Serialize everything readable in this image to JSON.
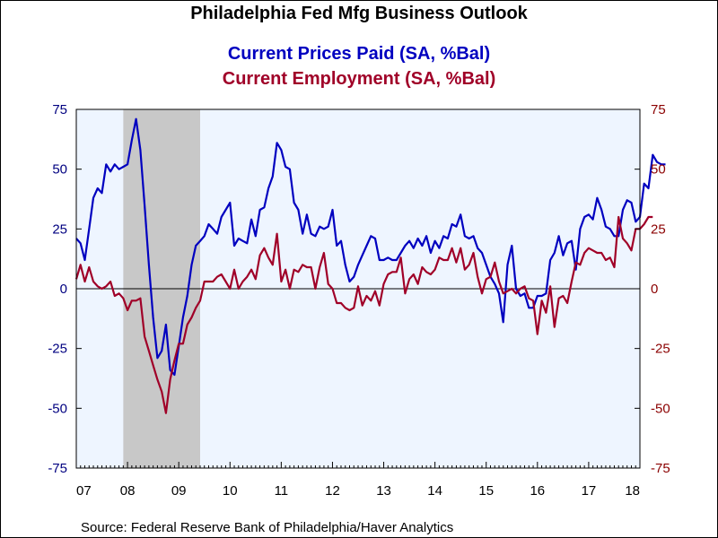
{
  "colors": {
    "background": "#ffffff",
    "plot_background": "#eef5ff",
    "recession_shade": "#c8c8c8",
    "prices_series": "#0000c0",
    "employment_series": "#a00028",
    "left_axis_text": "#000080",
    "right_axis_text": "#8b0000"
  },
  "chart_data": {
    "type": "line",
    "title": "Philadelphia Fed Mfg Business Outlook",
    "source": "Source:  Federal Reserve Bank of Philadelphia/Haver Analytics",
    "x_tick_labels": [
      "07",
      "08",
      "09",
      "10",
      "11",
      "12",
      "13",
      "14",
      "15",
      "16",
      "17",
      "18"
    ],
    "x_range": [
      2007.0,
      2018.0
    ],
    "ylim": [
      -75,
      75
    ],
    "y_tick_labels": [
      "75",
      "50",
      "25",
      "0",
      "-25",
      "-50",
      "-75"
    ],
    "y_ticks": [
      75,
      50,
      25,
      0,
      -25,
      -50,
      -75
    ],
    "zero_line": true,
    "grid": false,
    "legend_placement": "title",
    "recession": {
      "start": 2007.917,
      "end": 2009.417
    },
    "series": [
      {
        "name": "Current Prices Paid (SA, %Bal)",
        "axis": "left",
        "color": "#0000c0",
        "points": [
          [
            2007.0,
            21
          ],
          [
            2007.083,
            19
          ],
          [
            2007.167,
            12
          ],
          [
            2007.25,
            25
          ],
          [
            2007.333,
            38
          ],
          [
            2007.417,
            42
          ],
          [
            2007.5,
            40
          ],
          [
            2007.583,
            52
          ],
          [
            2007.667,
            49
          ],
          [
            2007.75,
            52
          ],
          [
            2007.833,
            50
          ],
          [
            2007.917,
            51
          ],
          [
            2008.0,
            52
          ],
          [
            2008.083,
            62
          ],
          [
            2008.167,
            71
          ],
          [
            2008.25,
            58
          ],
          [
            2008.333,
            35
          ],
          [
            2008.417,
            10
          ],
          [
            2008.5,
            -12
          ],
          [
            2008.583,
            -29
          ],
          [
            2008.667,
            -26
          ],
          [
            2008.75,
            -15
          ],
          [
            2008.833,
            -34
          ],
          [
            2008.917,
            -36
          ],
          [
            2009.0,
            -24
          ],
          [
            2009.083,
            -12
          ],
          [
            2009.167,
            -3
          ],
          [
            2009.25,
            10
          ],
          [
            2009.333,
            18
          ],
          [
            2009.417,
            20
          ],
          [
            2009.5,
            22
          ],
          [
            2009.583,
            27
          ],
          [
            2009.667,
            25
          ],
          [
            2009.75,
            23
          ],
          [
            2009.833,
            30
          ],
          [
            2009.917,
            33
          ],
          [
            2010.0,
            36
          ],
          [
            2010.083,
            18
          ],
          [
            2010.167,
            21
          ],
          [
            2010.25,
            20
          ],
          [
            2010.333,
            19
          ],
          [
            2010.417,
            29
          ],
          [
            2010.5,
            22
          ],
          [
            2010.583,
            33
          ],
          [
            2010.667,
            34
          ],
          [
            2010.75,
            42
          ],
          [
            2010.833,
            47
          ],
          [
            2010.917,
            61
          ],
          [
            2011.0,
            58
          ],
          [
            2011.083,
            51
          ],
          [
            2011.167,
            50
          ],
          [
            2011.25,
            36
          ],
          [
            2011.333,
            33
          ],
          [
            2011.417,
            23
          ],
          [
            2011.5,
            31
          ],
          [
            2011.583,
            23
          ],
          [
            2011.667,
            22
          ],
          [
            2011.75,
            26
          ],
          [
            2011.833,
            25
          ],
          [
            2011.917,
            26
          ],
          [
            2012.0,
            33
          ],
          [
            2012.083,
            18
          ],
          [
            2012.167,
            20
          ],
          [
            2012.25,
            10
          ],
          [
            2012.333,
            3
          ],
          [
            2012.417,
            5
          ],
          [
            2012.5,
            10
          ],
          [
            2012.583,
            14
          ],
          [
            2012.667,
            18
          ],
          [
            2012.75,
            22
          ],
          [
            2012.833,
            21
          ],
          [
            2012.917,
            12
          ],
          [
            2013.0,
            12
          ],
          [
            2013.083,
            13
          ],
          [
            2013.167,
            12
          ],
          [
            2013.25,
            12
          ],
          [
            2013.333,
            15
          ],
          [
            2013.417,
            18
          ],
          [
            2013.5,
            20
          ],
          [
            2013.583,
            17
          ],
          [
            2013.667,
            21
          ],
          [
            2013.75,
            18
          ],
          [
            2013.833,
            22
          ],
          [
            2013.917,
            15
          ],
          [
            2014.0,
            20
          ],
          [
            2014.083,
            17
          ],
          [
            2014.167,
            22
          ],
          [
            2014.25,
            21
          ],
          [
            2014.333,
            27
          ],
          [
            2014.417,
            26
          ],
          [
            2014.5,
            31
          ],
          [
            2014.583,
            22
          ],
          [
            2014.667,
            21
          ],
          [
            2014.75,
            22
          ],
          [
            2014.833,
            17
          ],
          [
            2014.917,
            15
          ],
          [
            2015.0,
            10
          ],
          [
            2015.083,
            5
          ],
          [
            2015.167,
            2
          ],
          [
            2015.25,
            -2
          ],
          [
            2015.333,
            -14
          ],
          [
            2015.417,
            10
          ],
          [
            2015.5,
            18
          ],
          [
            2015.583,
            0
          ],
          [
            2015.667,
            -3
          ],
          [
            2015.75,
            -2
          ],
          [
            2015.833,
            -8
          ],
          [
            2015.917,
            -8
          ],
          [
            2016.0,
            -3
          ],
          [
            2016.083,
            -3
          ],
          [
            2016.167,
            -2
          ],
          [
            2016.25,
            12
          ],
          [
            2016.333,
            15
          ],
          [
            2016.417,
            22
          ],
          [
            2016.5,
            14
          ],
          [
            2016.583,
            19
          ],
          [
            2016.667,
            20
          ],
          [
            2016.75,
            8
          ],
          [
            2016.833,
            25
          ],
          [
            2016.917,
            30
          ],
          [
            2017.0,
            31
          ],
          [
            2017.083,
            29
          ],
          [
            2017.167,
            38
          ],
          [
            2017.25,
            33
          ],
          [
            2017.333,
            26
          ],
          [
            2017.417,
            25
          ],
          [
            2017.5,
            22
          ],
          [
            2017.583,
            22
          ],
          [
            2017.667,
            33
          ],
          [
            2017.75,
            37
          ],
          [
            2017.833,
            36
          ],
          [
            2017.917,
            28
          ],
          [
            2018.0,
            30
          ],
          [
            2018.083,
            44
          ],
          [
            2018.167,
            42
          ],
          [
            2018.25,
            56
          ],
          [
            2018.333,
            53
          ],
          [
            2018.417,
            52
          ],
          [
            2018.5,
            52
          ]
        ]
      },
      {
        "name": "Current Employment (SA, %Bal)",
        "axis": "right",
        "color": "#a00028",
        "points": [
          [
            2007.0,
            4
          ],
          [
            2007.083,
            10
          ],
          [
            2007.167,
            3
          ],
          [
            2007.25,
            9
          ],
          [
            2007.333,
            3
          ],
          [
            2007.417,
            1
          ],
          [
            2007.5,
            0
          ],
          [
            2007.583,
            1
          ],
          [
            2007.667,
            3
          ],
          [
            2007.75,
            -3
          ],
          [
            2007.833,
            -2
          ],
          [
            2007.917,
            -4
          ],
          [
            2008.0,
            -9
          ],
          [
            2008.083,
            -5
          ],
          [
            2008.167,
            -5
          ],
          [
            2008.25,
            -4
          ],
          [
            2008.333,
            -20
          ],
          [
            2008.417,
            -26
          ],
          [
            2008.5,
            -32
          ],
          [
            2008.583,
            -38
          ],
          [
            2008.667,
            -43
          ],
          [
            2008.75,
            -52
          ],
          [
            2008.833,
            -38
          ],
          [
            2008.917,
            -30
          ],
          [
            2009.0,
            -23
          ],
          [
            2009.083,
            -23
          ],
          [
            2009.167,
            -15
          ],
          [
            2009.25,
            -12
          ],
          [
            2009.333,
            -8
          ],
          [
            2009.417,
            -5
          ],
          [
            2009.5,
            3
          ],
          [
            2009.583,
            3
          ],
          [
            2009.667,
            3
          ],
          [
            2009.75,
            5
          ],
          [
            2009.833,
            6
          ],
          [
            2009.917,
            3
          ],
          [
            2010.0,
            0
          ],
          [
            2010.083,
            8
          ],
          [
            2010.167,
            0
          ],
          [
            2010.25,
            3
          ],
          [
            2010.333,
            5
          ],
          [
            2010.417,
            8
          ],
          [
            2010.5,
            4
          ],
          [
            2010.583,
            14
          ],
          [
            2010.667,
            17
          ],
          [
            2010.75,
            13
          ],
          [
            2010.833,
            10
          ],
          [
            2010.917,
            23
          ],
          [
            2011.0,
            3
          ],
          [
            2011.083,
            8
          ],
          [
            2011.167,
            0
          ],
          [
            2011.25,
            8
          ],
          [
            2011.333,
            7
          ],
          [
            2011.417,
            10
          ],
          [
            2011.5,
            9
          ],
          [
            2011.583,
            9
          ],
          [
            2011.667,
            0
          ],
          [
            2011.75,
            9
          ],
          [
            2011.833,
            15
          ],
          [
            2011.917,
            2
          ],
          [
            2012.0,
            0
          ],
          [
            2012.083,
            -6
          ],
          [
            2012.167,
            -6
          ],
          [
            2012.25,
            -8
          ],
          [
            2012.333,
            -9
          ],
          [
            2012.417,
            -8
          ],
          [
            2012.5,
            1
          ],
          [
            2012.583,
            -7
          ],
          [
            2012.667,
            -3
          ],
          [
            2012.75,
            -5
          ],
          [
            2012.833,
            -1
          ],
          [
            2012.917,
            -7
          ],
          [
            2013.0,
            2
          ],
          [
            2013.083,
            6
          ],
          [
            2013.167,
            7
          ],
          [
            2013.25,
            7
          ],
          [
            2013.333,
            13
          ],
          [
            2013.417,
            -2
          ],
          [
            2013.5,
            4
          ],
          [
            2013.583,
            6
          ],
          [
            2013.667,
            2
          ],
          [
            2013.75,
            9
          ],
          [
            2013.833,
            7
          ],
          [
            2013.917,
            6
          ],
          [
            2014.0,
            8
          ],
          [
            2014.083,
            13
          ],
          [
            2014.167,
            12
          ],
          [
            2014.25,
            12
          ],
          [
            2014.333,
            17
          ],
          [
            2014.417,
            11
          ],
          [
            2014.5,
            17
          ],
          [
            2014.583,
            8
          ],
          [
            2014.667,
            10
          ],
          [
            2014.75,
            15
          ],
          [
            2014.833,
            5
          ],
          [
            2014.917,
            -2
          ],
          [
            2015.0,
            4
          ],
          [
            2015.083,
            5
          ],
          [
            2015.167,
            11
          ],
          [
            2015.25,
            3
          ],
          [
            2015.333,
            -2
          ],
          [
            2015.417,
            -1
          ],
          [
            2015.5,
            0
          ],
          [
            2015.583,
            -2
          ],
          [
            2015.667,
            0
          ],
          [
            2015.75,
            1
          ],
          [
            2015.833,
            -4
          ],
          [
            2015.917,
            -5
          ],
          [
            2016.0,
            -19
          ],
          [
            2016.083,
            -5
          ],
          [
            2016.167,
            -10
          ],
          [
            2016.25,
            1
          ],
          [
            2016.333,
            -16
          ],
          [
            2016.417,
            -4
          ],
          [
            2016.5,
            -3
          ],
          [
            2016.583,
            -6
          ],
          [
            2016.667,
            3
          ],
          [
            2016.75,
            11
          ],
          [
            2016.833,
            10
          ],
          [
            2016.917,
            15
          ],
          [
            2017.0,
            17
          ],
          [
            2017.083,
            16
          ],
          [
            2017.167,
            15
          ],
          [
            2017.25,
            15
          ],
          [
            2017.333,
            12
          ],
          [
            2017.417,
            13
          ],
          [
            2017.5,
            9
          ],
          [
            2017.583,
            30
          ],
          [
            2017.667,
            21
          ],
          [
            2017.75,
            19
          ],
          [
            2017.833,
            16
          ],
          [
            2017.917,
            25
          ],
          [
            2018.0,
            25
          ],
          [
            2018.083,
            27
          ],
          [
            2018.167,
            30
          ],
          [
            2018.25,
            30
          ]
        ]
      }
    ]
  }
}
